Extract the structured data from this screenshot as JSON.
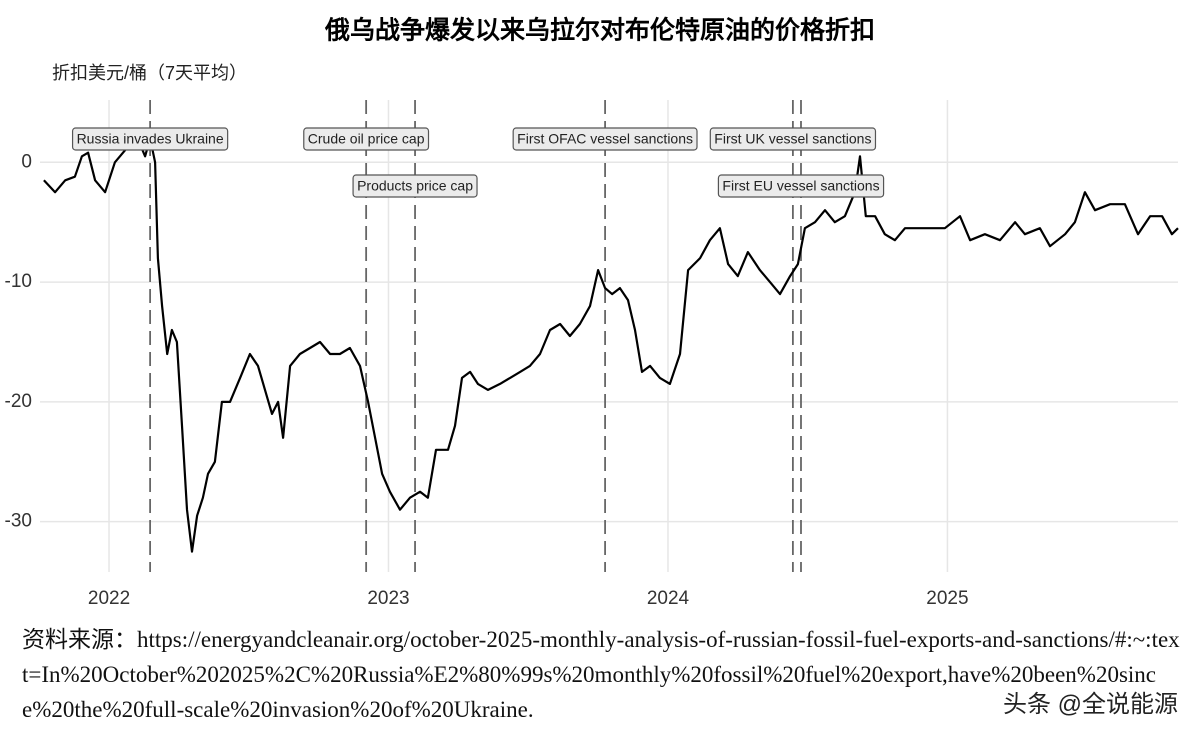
{
  "chart_data": {
    "type": "line",
    "title": "俄乌战争爆发以来乌拉尔对布伦特原油的价格折扣",
    "y_label": "折扣美元/桶（7天平均）",
    "xlim": [
      2021.753,
      2025.825
    ],
    "xticks": [
      2022,
      2023,
      2024,
      2025
    ],
    "ylim": [
      -34.2,
      5.2
    ],
    "yticks": [
      0,
      -10,
      -20,
      -30
    ],
    "grid": true,
    "series": [
      {
        "color": "#000000",
        "x": [
          2021.767,
          2021.807,
          2021.843,
          2021.878,
          2021.903,
          2021.925,
          2021.95,
          2021.986,
          2022.021,
          2022.057,
          2022.093,
          2022.129,
          2022.147,
          2022.165,
          2022.175,
          2022.19,
          2022.208,
          2022.225,
          2022.243,
          2022.261,
          2022.279,
          2022.297,
          2022.315,
          2022.336,
          2022.354,
          2022.379,
          2022.404,
          2022.433,
          2022.469,
          2022.504,
          2022.533,
          2022.558,
          2022.583,
          2022.605,
          2022.623,
          2022.648,
          2022.683,
          2022.719,
          2022.755,
          2022.791,
          2022.826,
          2022.862,
          2022.898,
          2022.927,
          2022.952,
          2022.977,
          2023.005,
          2023.041,
          2023.077,
          2023.113,
          2023.141,
          2023.17,
          2023.213,
          2023.238,
          2023.263,
          2023.292,
          2023.32,
          2023.356,
          2023.399,
          2023.435,
          2023.471,
          2023.506,
          2023.542,
          2023.578,
          2023.614,
          2023.649,
          2023.685,
          2023.721,
          2023.75,
          2023.775,
          2023.8,
          2023.828,
          2023.857,
          2023.882,
          2023.907,
          2023.936,
          2023.971,
          2024.007,
          2024.043,
          2024.072,
          2024.115,
          2024.15,
          2024.186,
          2024.215,
          2024.25,
          2024.286,
          2024.329,
          2024.365,
          2024.401,
          2024.437,
          2024.465,
          2024.49,
          2024.526,
          2024.562,
          2024.597,
          2024.633,
          2024.669,
          2024.687,
          2024.708,
          2024.741,
          2024.776,
          2024.812,
          2024.848,
          2024.884,
          2024.937,
          2024.991,
          2025.045,
          2025.081,
          2025.134,
          2025.188,
          2025.242,
          2025.277,
          2025.331,
          2025.367,
          2025.421,
          2025.456,
          2025.492,
          2025.528,
          2025.582,
          2025.635,
          2025.682,
          2025.725,
          2025.768,
          2025.803,
          2025.825
        ],
        "values": [
          -1.5,
          -2.5,
          -1.5,
          -1.2,
          0.5,
          0.8,
          -1.5,
          -2.5,
          0,
          1,
          2.5,
          0.5,
          2,
          0,
          -8,
          -12,
          -16,
          -14,
          -15,
          -22,
          -29,
          -32.5,
          -29.5,
          -28,
          -26,
          -25,
          -20,
          -20,
          -18,
          -16,
          -17,
          -19,
          -21,
          -20,
          -23,
          -17,
          -16,
          -15.5,
          -15,
          -16,
          -16,
          -15.5,
          -17,
          -20,
          -23,
          -26,
          -27.5,
          -29,
          -28,
          -27.5,
          -28,
          -24,
          -24,
          -22,
          -18,
          -17.5,
          -18.5,
          -19,
          -18.5,
          -18,
          -17.5,
          -17,
          -16,
          -14,
          -13.5,
          -14.5,
          -13.5,
          -12,
          -9,
          -10.5,
          -11,
          -10.5,
          -11.5,
          -14,
          -17.5,
          -17,
          -18,
          -18.5,
          -16,
          -9,
          -8,
          -6.5,
          -5.5,
          -8.5,
          -9.5,
          -7.5,
          -9,
          -10,
          -11,
          -9.5,
          -8.5,
          -5.5,
          -5,
          -4,
          -5,
          -4.5,
          -2.5,
          0.5,
          -4.5,
          -4.5,
          -6,
          -6.5,
          -5.5,
          -5.5,
          -5.5,
          -5.5,
          -4.5,
          -6.5,
          -6,
          -6.5,
          -5,
          -6,
          -5.5,
          -7,
          -6,
          -5,
          -2.5,
          -4,
          -3.5,
          -3.5,
          -6,
          -4.5,
          -4.5,
          -6,
          -5.5
        ]
      }
    ],
    "annotations": [
      {
        "x": 2022.147,
        "label": "Russia invades Ukraine"
      },
      {
        "x": 2022.92,
        "label": "Crude oil price cap"
      },
      {
        "x": 2023.095,
        "label": "Products price cap"
      },
      {
        "x": 2023.775,
        "label": "First OFAC vessel sanctions"
      },
      {
        "x": 2024.447,
        "label": "First UK vessel sanctions"
      },
      {
        "x": 2024.476,
        "label": "First EU vessel sanctions"
      }
    ],
    "source": "资料来源：https://energyandcleanair.org/october-2025-monthly-analysis-of-russian-fossil-fuel-exports-and-sanctions/#:~:text=In%20October%202025%2C%20Russia%E2%80%99s%20monthly%20fossil%20fuel%20export,have%20been%20since%20the%20full-scale%20invasion%20of%20Ukraine.",
    "watermark": "头条 @全说能源"
  }
}
